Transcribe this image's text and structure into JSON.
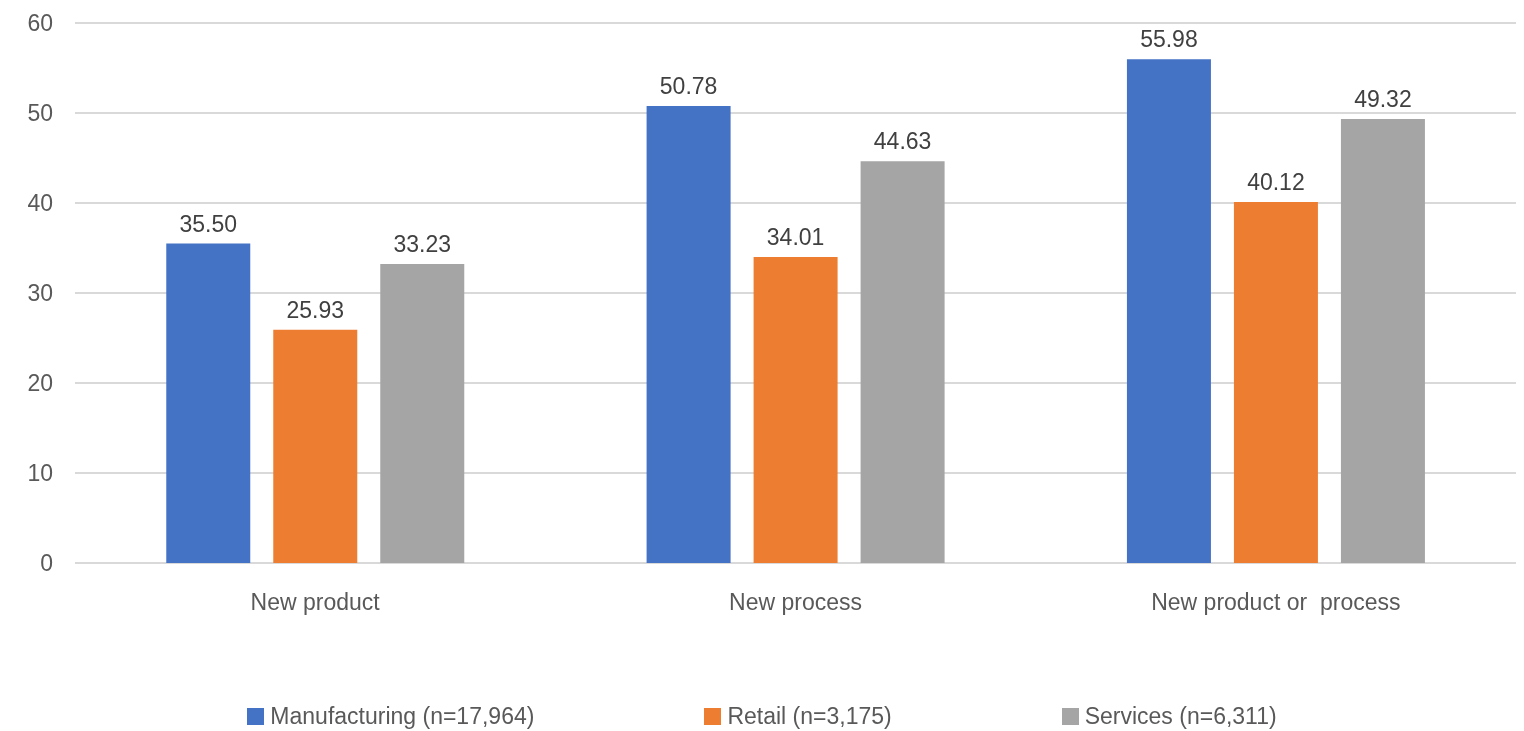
{
  "chart_data": {
    "type": "bar",
    "categories": [
      "New product",
      "New process",
      "New product or  process"
    ],
    "series": [
      {
        "name": "Manufacturing (n=17,964)",
        "color": "#4472c4",
        "values": [
          35.5,
          50.78,
          55.98
        ],
        "value_labels": [
          "35.50",
          "50.78",
          "55.98"
        ]
      },
      {
        "name": "Retail (n=3,175)",
        "color": "#ed7d31",
        "values": [
          25.93,
          34.01,
          40.12
        ],
        "value_labels": [
          "25.93",
          "34.01",
          "40.12"
        ]
      },
      {
        "name": "Services (n=6,311)",
        "color": "#a5a5a5",
        "values": [
          33.23,
          44.63,
          49.32
        ],
        "value_labels": [
          "33.23",
          "44.63",
          "49.32"
        ]
      }
    ],
    "ylim": [
      0,
      60
    ],
    "yticks": [
      0,
      10,
      20,
      30,
      40,
      50,
      60
    ],
    "grid": "y",
    "legend": "bottom"
  }
}
